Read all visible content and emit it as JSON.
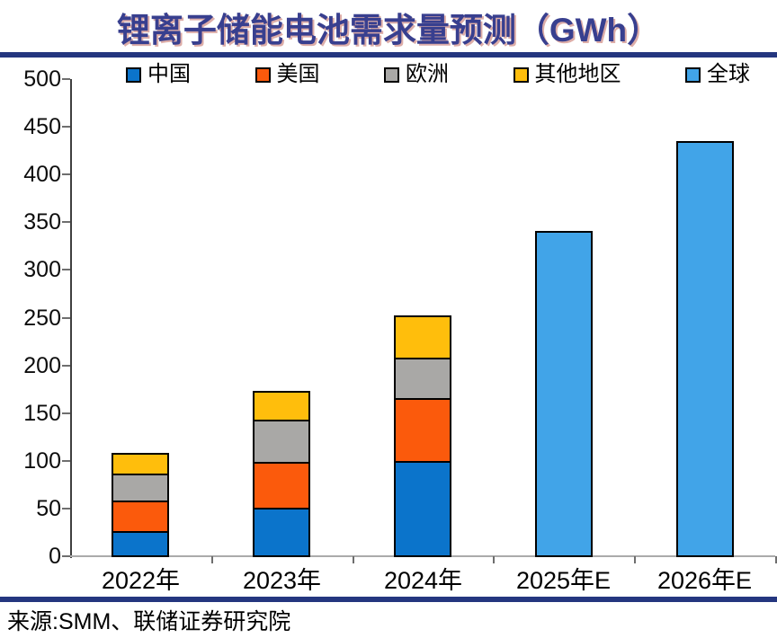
{
  "title": {
    "text": "锂离子储能电池需求量预测（GWh）"
  },
  "footer": {
    "source": "来源:SMM、联储证券研究院"
  },
  "colors": {
    "title": "#383F8F",
    "divider": "#24367F",
    "y_axis": "#3F3F3F",
    "x_axis": "#ABABAB",
    "tick": "#6E6E6E",
    "bar_border": "#000000"
  },
  "chart_data": {
    "type": "bar",
    "stacked": true,
    "title": "锂离子储能电池需求量预测（GWh）",
    "unit": "GWh",
    "categories": [
      "2022年",
      "2023年",
      "2024年",
      "2025年E",
      "2026年E"
    ],
    "series": [
      {
        "name": "中国",
        "color": "#0B74CB",
        "values": [
          26,
          51,
          100,
          null,
          null
        ]
      },
      {
        "name": "美国",
        "color": "#FB5A0C",
        "values": [
          32,
          48,
          66,
          null,
          null
        ]
      },
      {
        "name": "欧洲",
        "color": "#A9A8A6",
        "values": [
          29,
          44,
          42,
          null,
          null
        ]
      },
      {
        "name": "其他地区",
        "color": "#FFBE0C",
        "values": [
          21,
          30,
          44,
          null,
          null
        ]
      },
      {
        "name": "全球",
        "color": "#41A4E8",
        "values": [
          null,
          null,
          null,
          341,
          435
        ]
      }
    ],
    "ylim": [
      0,
      500
    ],
    "yticks": [
      0,
      50,
      100,
      150,
      200,
      250,
      300,
      350,
      400,
      450,
      500
    ],
    "grid": false,
    "legend_position": "top"
  }
}
